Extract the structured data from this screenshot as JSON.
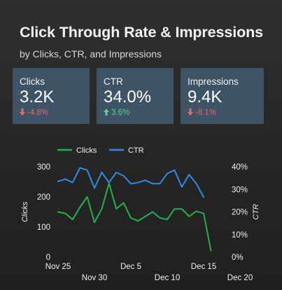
{
  "header": {
    "title": "Click Through Rate & Impressions",
    "subtitle": "by Clicks, CTR, and Impressions"
  },
  "kpis": [
    {
      "label": "Clicks",
      "value": "3.2K",
      "delta": "-4.8%",
      "direction": "down"
    },
    {
      "label": "CTR",
      "value": "34.0%",
      "delta": "3.6%",
      "direction": "up"
    },
    {
      "label": "Impressions",
      "value": "9.4K",
      "delta": "-8.1%",
      "direction": "down"
    }
  ],
  "colors": {
    "clicks": "#22b14c",
    "ctr": "#2e8be6",
    "card_background": "#3e5466",
    "delta_down": "#e8686a",
    "delta_up": "#55d38a"
  },
  "icons": {
    "down": "arrow-down-icon",
    "up": "arrow-up-icon"
  },
  "chart_data": {
    "type": "line",
    "xlabel": "",
    "ylabel": "Clicks",
    "y2label": "CTR",
    "ylim": [
      0,
      300
    ],
    "y2lim": [
      0,
      40
    ],
    "yticks": [
      "0",
      "100",
      "200",
      "300"
    ],
    "y2ticks": [
      "0%",
      "10%",
      "20%",
      "30%",
      "40%"
    ],
    "y2tick_values": [
      0,
      10,
      20,
      30,
      40
    ],
    "xlim": [
      "2023-11-25",
      "2023-12-20"
    ],
    "xticks": [
      {
        "label": "Nov 25",
        "date": "2023-11-25",
        "row": 0
      },
      {
        "label": "Nov 30",
        "date": "2023-11-30",
        "row": 1
      },
      {
        "label": "Dec 5",
        "date": "2023-12-05",
        "row": 0
      },
      {
        "label": "Dec 10",
        "date": "2023-12-10",
        "row": 1
      },
      {
        "label": "Dec 15",
        "date": "2023-12-15",
        "row": 0
      },
      {
        "label": "Dec 20",
        "date": "2023-12-20",
        "row": 1
      }
    ],
    "x": [
      "2023-11-25",
      "2023-11-26",
      "2023-11-27",
      "2023-11-28",
      "2023-11-29",
      "2023-11-30",
      "2023-12-01",
      "2023-12-02",
      "2023-12-03",
      "2023-12-04",
      "2023-12-05",
      "2023-12-06",
      "2023-12-07",
      "2023-12-08",
      "2023-12-09",
      "2023-12-10",
      "2023-12-11",
      "2023-12-12",
      "2023-12-13",
      "2023-12-14",
      "2023-12-15",
      "2023-12-16"
    ],
    "legend": "top-left",
    "grid": false,
    "series": [
      {
        "name": "Clicks",
        "axis": "left",
        "values": [
          150,
          145,
          125,
          165,
          200,
          115,
          160,
          245,
          160,
          180,
          130,
          120,
          135,
          150,
          130,
          125,
          160,
          160,
          135,
          152,
          145,
          22
        ]
      },
      {
        "name": "CTR",
        "axis": "right",
        "values": [
          33.5,
          34.5,
          33.0,
          39.5,
          38.5,
          30.5,
          37.5,
          33.0,
          37.5,
          36.0,
          32.5,
          33.0,
          34.0,
          32.5,
          32.5,
          37.0,
          38.5,
          31.0,
          36.5,
          32.5,
          26.5,
          null
        ]
      }
    ]
  }
}
